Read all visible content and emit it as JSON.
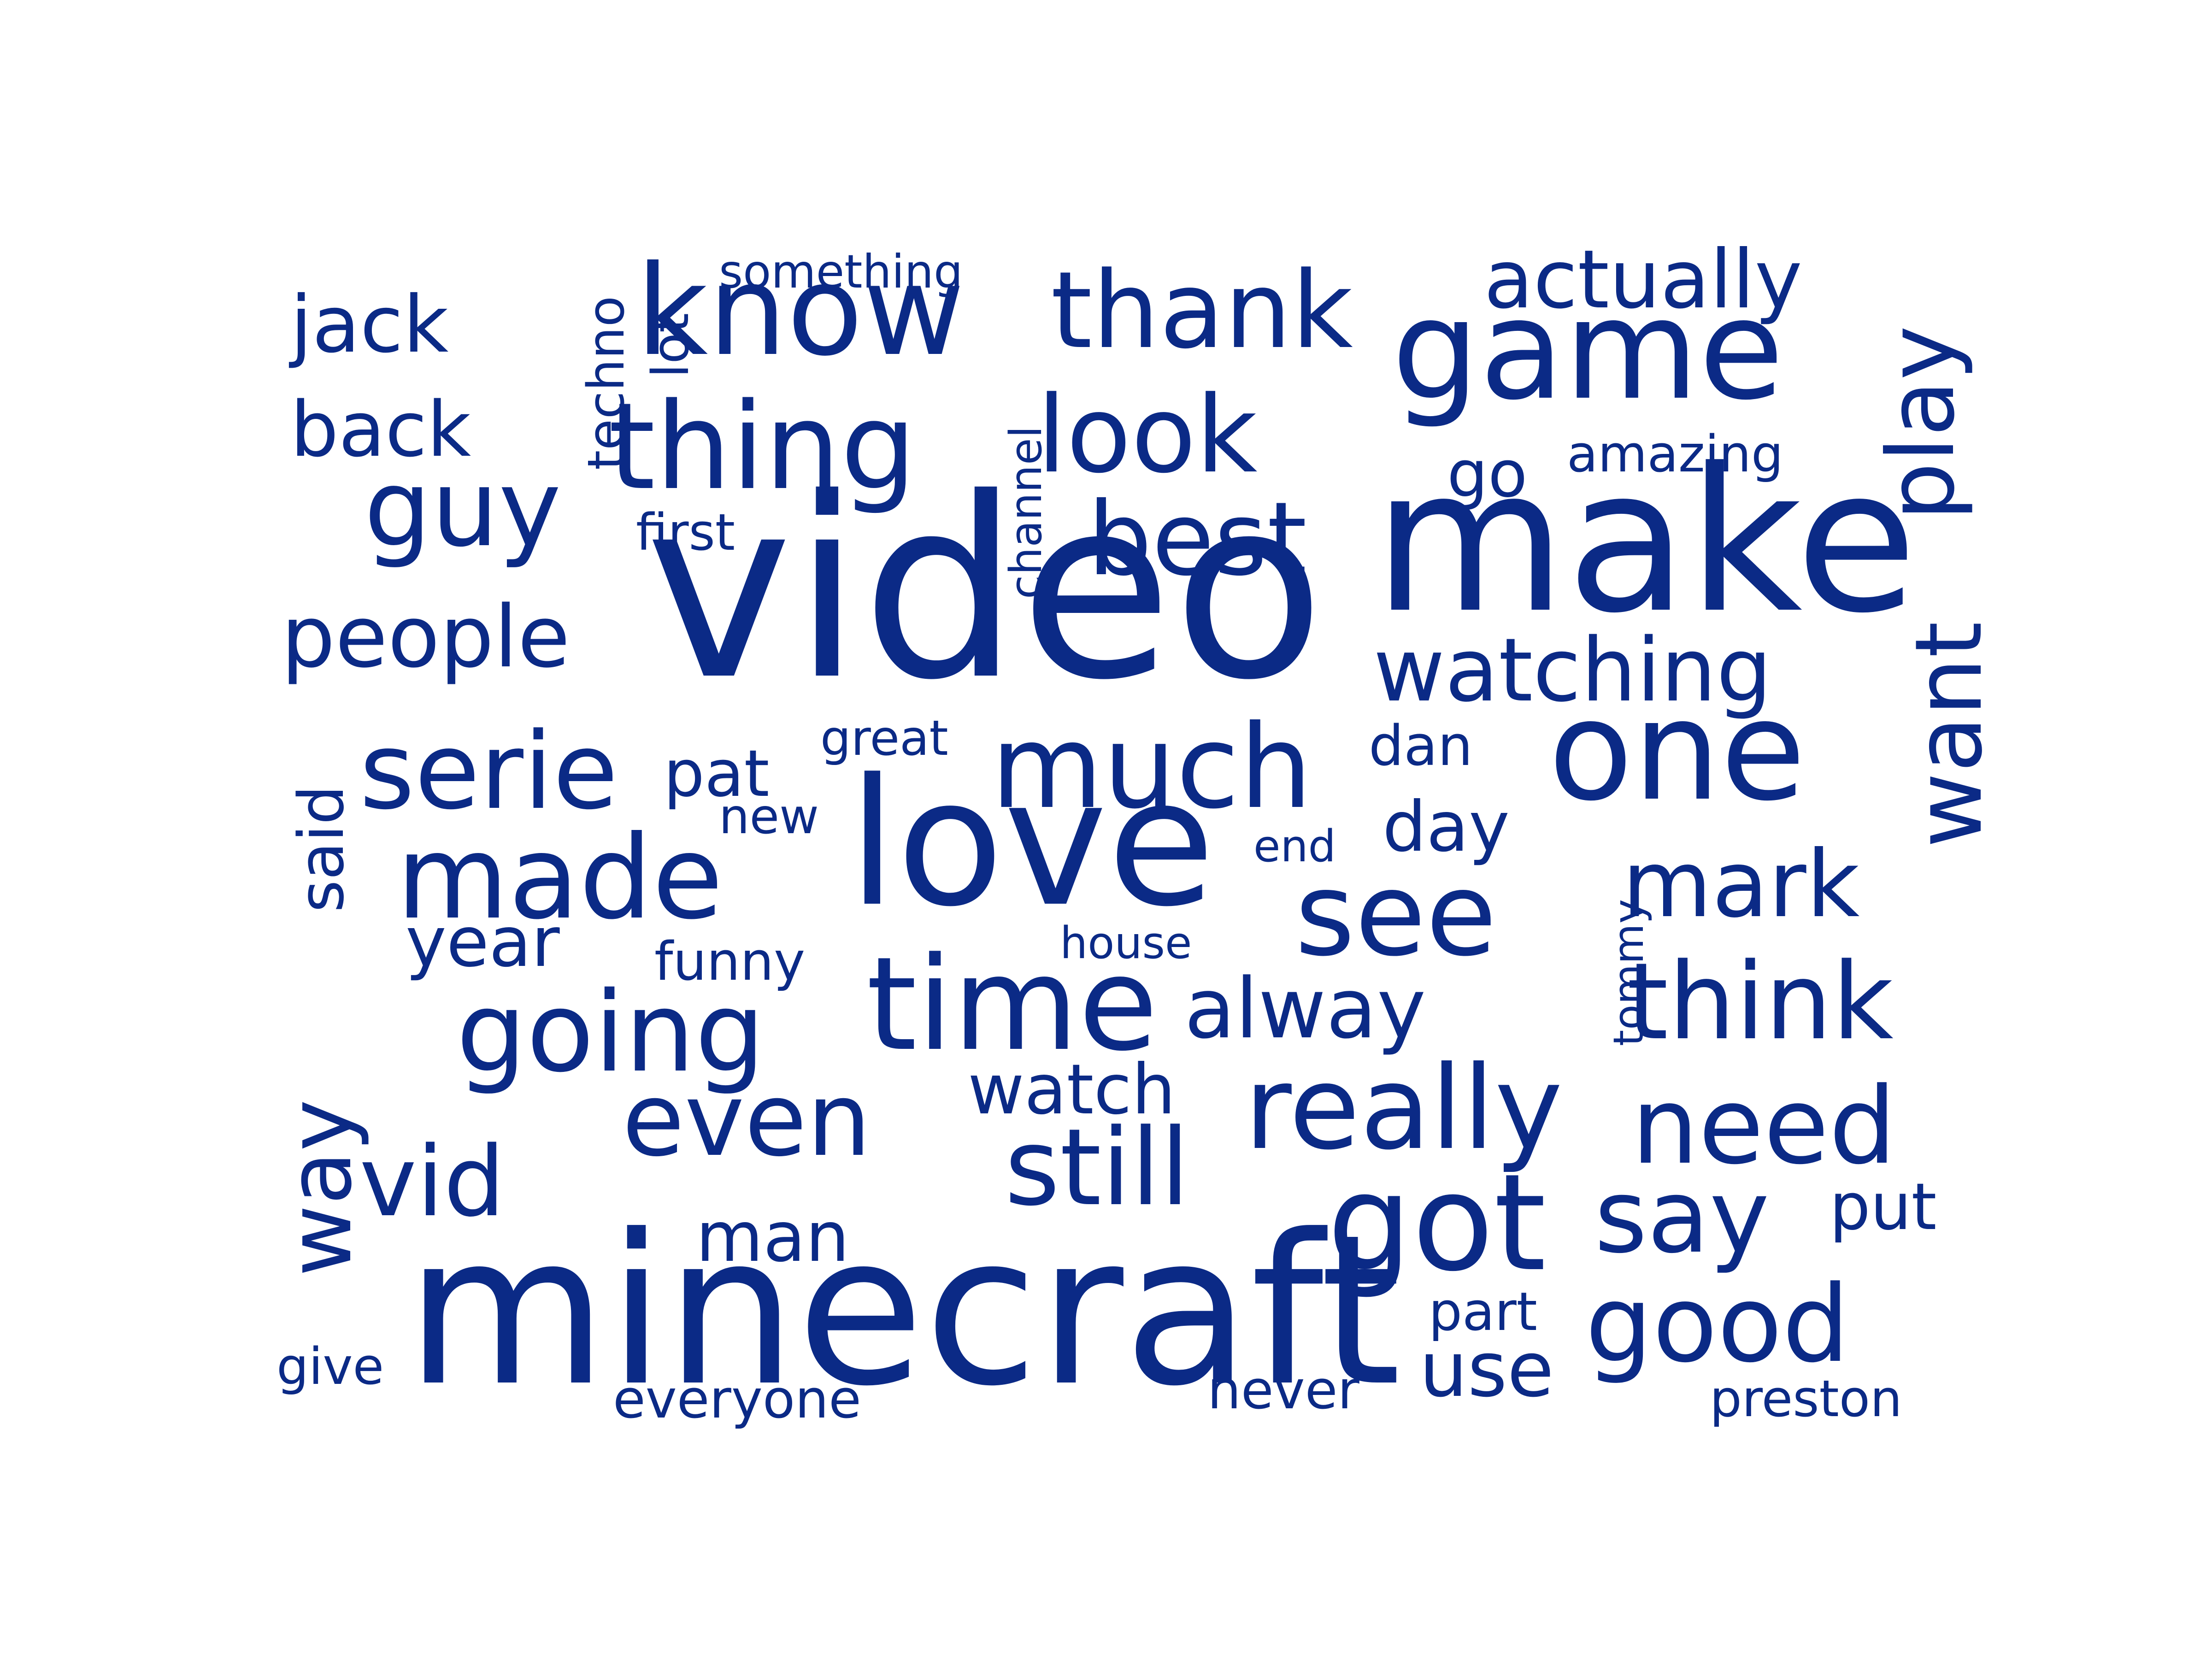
{
  "color": "#0b2a86",
  "icons": [],
  "words": [
    "video",
    "minecraft",
    "make",
    "love",
    "game",
    "one",
    "know",
    "thing",
    "time",
    "got",
    "much",
    "made",
    "see",
    "really",
    "going",
    "good",
    "think",
    "need",
    "serie",
    "look",
    "thank",
    "best",
    "guy",
    "even",
    "still",
    "say",
    "watching",
    "mark",
    "people",
    "actually",
    "alway",
    "jack",
    "back",
    "vid",
    "use",
    "watch",
    "man",
    "pat",
    "year",
    "day",
    "put",
    "amazing",
    "go",
    "great",
    "dan",
    "funny",
    "first",
    "new",
    "something",
    "house",
    "part",
    "everyone",
    "never",
    "preston",
    "give",
    "end",
    "play",
    "want",
    "way",
    "said",
    "techno",
    "lot",
    "channel",
    "tommy"
  ]
}
